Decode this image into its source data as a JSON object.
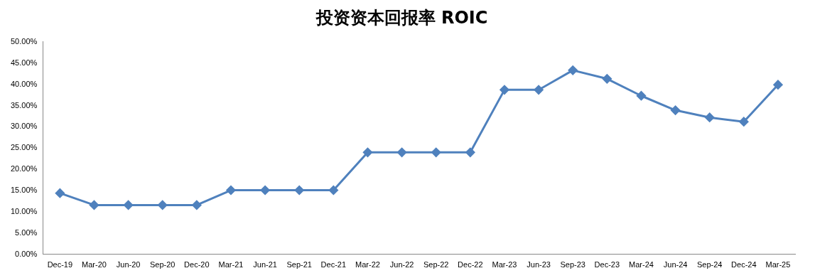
{
  "chart_data": {
    "type": "line",
    "title": "投资资本回报率 ROIC",
    "categories": [
      "Dec-19",
      "Mar-20",
      "Jun-20",
      "Sep-20",
      "Dec-20",
      "Mar-21",
      "Jun-21",
      "Sep-21",
      "Dec-21",
      "Mar-22",
      "Jun-22",
      "Sep-22",
      "Dec-22",
      "Mar-23",
      "Jun-23",
      "Sep-23",
      "Dec-23",
      "Mar-24",
      "Jun-24",
      "Sep-24",
      "Dec-24",
      "Mar-25"
    ],
    "series": [
      {
        "color": "#4f81bd",
        "values": [
          14.4,
          11.6,
          11.6,
          11.6,
          11.6,
          15.1,
          15.1,
          15.1,
          15.1,
          24.0,
          24.0,
          24.0,
          24.0,
          38.7,
          38.7,
          43.3,
          41.3,
          37.3,
          33.9,
          32.2,
          31.2,
          39.9
        ]
      }
    ],
    "ylim": [
      0,
      50
    ],
    "yticks": [
      {
        "value": 0,
        "label": "0.00%"
      },
      {
        "value": 5,
        "label": "5.00%"
      },
      {
        "value": 10,
        "label": "10.00%"
      },
      {
        "value": 15,
        "label": "15.00%"
      },
      {
        "value": 20,
        "label": "20.00%"
      },
      {
        "value": 25,
        "label": "25.00%"
      },
      {
        "value": 30,
        "label": "30.00%"
      },
      {
        "value": 35,
        "label": "35.00%"
      },
      {
        "value": 40,
        "label": "40.00%"
      },
      {
        "value": 45,
        "label": "45.00%"
      },
      {
        "value": 50,
        "label": "50.00%"
      }
    ],
    "grid": false,
    "legend": false,
    "marker": "diamond",
    "line_style": "solid"
  }
}
